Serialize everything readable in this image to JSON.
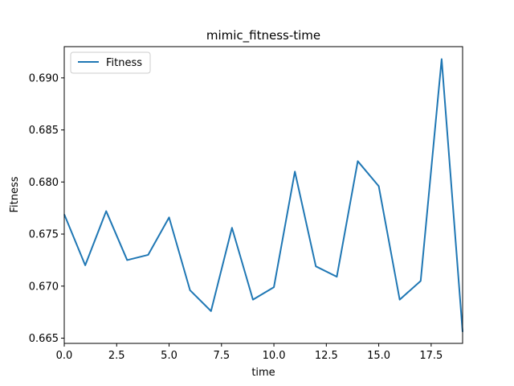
{
  "chart_data": {
    "type": "line",
    "title": "mimic_fitness-time",
    "xlabel": "time",
    "ylabel": "Fitness",
    "xlim": [
      0,
      19
    ],
    "ylim": [
      0.6645,
      0.693
    ],
    "xticks": [
      0,
      2.5,
      5,
      7.5,
      10,
      12.5,
      15,
      17.5
    ],
    "xtick_labels": [
      "0.0",
      "2.5",
      "5.0",
      "7.5",
      "10.0",
      "12.5",
      "15.0",
      "17.5"
    ],
    "yticks": [
      0.665,
      0.67,
      0.675,
      0.68,
      0.685,
      0.69
    ],
    "ytick_labels": [
      "0.665",
      "0.670",
      "0.675",
      "0.680",
      "0.685",
      "0.690"
    ],
    "grid": false,
    "legend_position": "top-left",
    "series": [
      {
        "name": "Fitness",
        "color": "#1f77b4",
        "x": [
          0,
          1,
          2,
          3,
          4,
          5,
          6,
          7,
          8,
          9,
          10,
          11,
          12,
          13,
          14,
          15,
          16,
          17,
          18,
          19
        ],
        "y": [
          0.6769,
          0.672,
          0.6772,
          0.6725,
          0.673,
          0.6766,
          0.6696,
          0.6676,
          0.6756,
          0.6687,
          0.6699,
          0.681,
          0.6719,
          0.6709,
          0.682,
          0.6796,
          0.6687,
          0.6705,
          0.6918,
          0.6656
        ]
      }
    ]
  }
}
